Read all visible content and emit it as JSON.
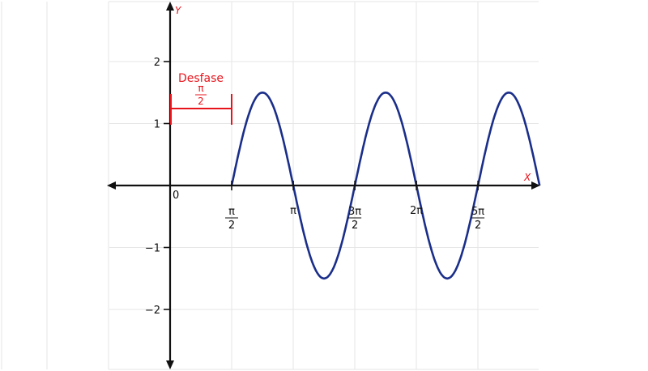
{
  "chart_data": {
    "type": "line",
    "title": "",
    "xlabel": "X",
    "ylabel": "Y",
    "xlim": [
      -1.2,
      7.2
    ],
    "ylim": [
      -3,
      3
    ],
    "grid": true,
    "origin_label": "0",
    "x_ticks": [
      {
        "value": 1.5708,
        "label": "π/2",
        "numerator": "π",
        "denominator": "2"
      },
      {
        "value": 3.1416,
        "label": "π"
      },
      {
        "value": 4.7124,
        "label": "3π/2",
        "numerator": "3π",
        "denominator": "2"
      },
      {
        "value": 6.2832,
        "label": "2π"
      },
      {
        "value": 7.854,
        "label": "5π/2",
        "numerator": "5π",
        "denominator": "2"
      }
    ],
    "y_ticks": [
      {
        "value": 2,
        "label": "2"
      },
      {
        "value": 1,
        "label": "1"
      },
      {
        "value": -1,
        "label": "−1"
      },
      {
        "value": -2,
        "label": "−2"
      }
    ],
    "series": [
      {
        "amplitude": 1.5,
        "period": 3.1416,
        "phase_shift": 1.5708,
        "x_start": 1.5708,
        "x_end": 9.4248,
        "color": "#1a2e8a"
      }
    ],
    "annotation": {
      "label": "Desfase",
      "numerator": "π",
      "denominator": "2",
      "x_from": 0,
      "x_to": 1.5708,
      "y": 1,
      "color": "#e8141c"
    },
    "axis_color": "#111111",
    "axis_label_color": "#e8141c"
  }
}
